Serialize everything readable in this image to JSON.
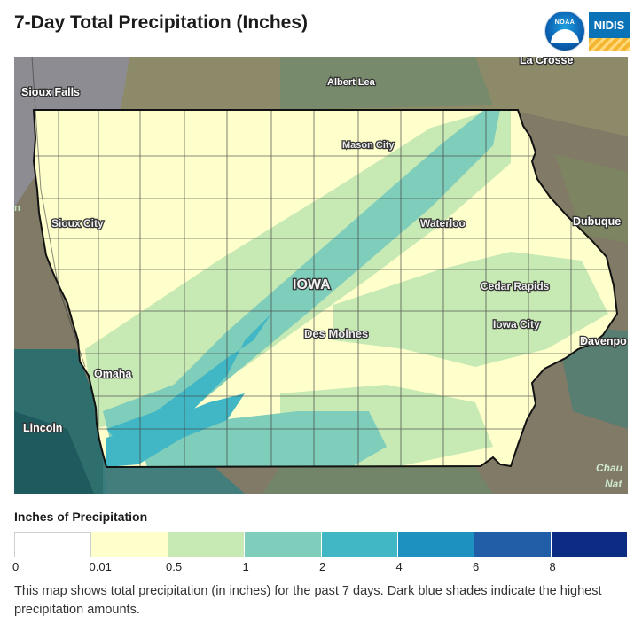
{
  "title": "7-Day Total Precipitation (Inches)",
  "logos": {
    "noaa": "NOAA",
    "nidis": "NIDIS"
  },
  "map": {
    "state_label": "IOWA",
    "cities": {
      "la_crosse": "La Crosse",
      "albert_lea": "Albert Lea",
      "sioux_falls": "Sioux Falls",
      "mason_city": "Mason City",
      "sioux_city": "Sioux City",
      "waterloo": "Waterloo",
      "dubuque": "Dubuque",
      "cedar_rapids": "Cedar Rapids",
      "iowa_city": "Iowa City",
      "des_moines": "Des Moines",
      "davenport": "Davenpo",
      "omaha": "Omaha",
      "lincoln": "Lincoln",
      "chau": "Chau",
      "nat": "Nat"
    },
    "edge_label": "n"
  },
  "legend": {
    "title": "Inches of Precipitation",
    "bins": [
      {
        "color": "#ffffff"
      },
      {
        "color": "#ffffcc"
      },
      {
        "color": "#c7e9b4"
      },
      {
        "color": "#7fcdbb"
      },
      {
        "color": "#41b6c4"
      },
      {
        "color": "#1d91c0"
      },
      {
        "color": "#225ea8"
      },
      {
        "color": "#0c2c84"
      }
    ],
    "ticks": [
      "0",
      "0.01",
      "0.5",
      "1",
      "2",
      "4",
      "6",
      "8"
    ]
  },
  "description": "This map shows total precipitation (in inches) for the past 7 days. Dark blue shades indicate the highest precipitation amounts."
}
